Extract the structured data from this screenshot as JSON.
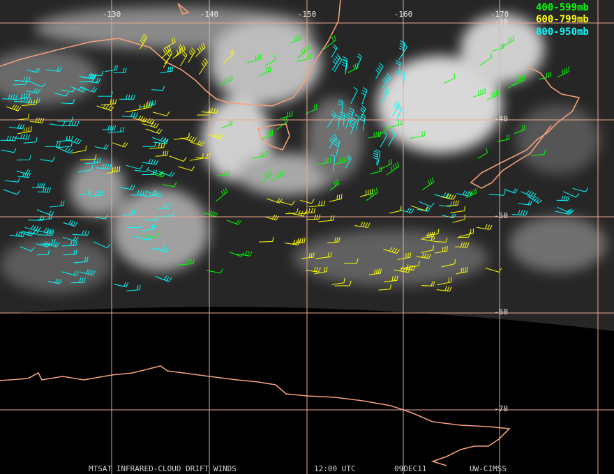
{
  "map": {
    "longitude_labels": [
      "-130",
      "-140",
      "-150",
      "-160",
      "-170"
    ],
    "latitude_labels": [
      "-30",
      "-40",
      "-50",
      "-60",
      "-70"
    ],
    "legend": [
      "400-599mb",
      "600-799mb",
      "800-950mb"
    ],
    "footer": [
      "MTSAT INFRARED-CLOUD DRIFT WINDS",
      "12:00 UTC",
      "09DEC11",
      "UW-CIMSS"
    ]
  }
}
